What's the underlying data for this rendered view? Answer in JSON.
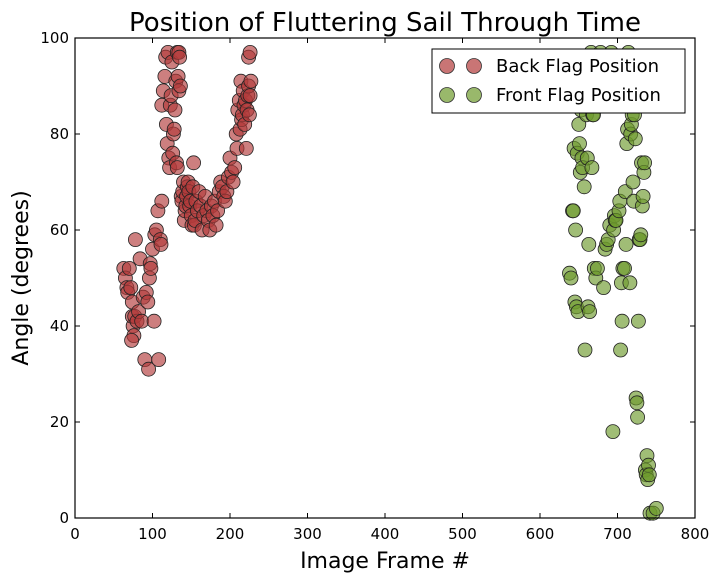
{
  "chart_data": {
    "type": "scatter",
    "title": "Position of Fluttering Sail Through Time",
    "xlabel": "Image Frame #",
    "ylabel": "Angle (degrees)",
    "xlim": [
      0,
      800
    ],
    "ylim": [
      0,
      100
    ],
    "xticks": [
      0,
      100,
      200,
      300,
      400,
      500,
      600,
      700,
      800
    ],
    "yticks": [
      0,
      20,
      40,
      60,
      80,
      100
    ],
    "grid": false,
    "legend_position": "top-right",
    "series": [
      {
        "name": "Back Flag Position",
        "color": "#b23a3a",
        "points": [
          [
            63,
            52
          ],
          [
            65,
            50
          ],
          [
            67,
            48
          ],
          [
            68,
            47
          ],
          [
            70,
            52
          ],
          [
            72,
            48
          ],
          [
            74,
            45
          ],
          [
            75,
            40
          ],
          [
            76,
            38
          ],
          [
            73,
            37
          ],
          [
            74,
            42
          ],
          [
            77,
            42
          ],
          [
            78,
            58
          ],
          [
            80,
            41
          ],
          [
            82,
            43
          ],
          [
            84,
            54
          ],
          [
            86,
            41
          ],
          [
            88,
            46
          ],
          [
            90,
            33
          ],
          [
            92,
            47
          ],
          [
            94,
            45
          ],
          [
            95,
            31
          ],
          [
            96,
            50
          ],
          [
            97,
            53
          ],
          [
            98,
            52
          ],
          [
            100,
            56
          ],
          [
            102,
            41
          ],
          [
            103,
            59
          ],
          [
            105,
            60
          ],
          [
            107,
            64
          ],
          [
            108,
            33
          ],
          [
            110,
            58
          ],
          [
            111,
            57
          ],
          [
            112,
            66
          ],
          [
            112,
            86
          ],
          [
            114,
            89
          ],
          [
            116,
            92
          ],
          [
            117,
            96
          ],
          [
            118,
            82
          ],
          [
            119,
            78
          ],
          [
            120,
            97
          ],
          [
            121,
            75
          ],
          [
            122,
            73
          ],
          [
            123,
            86
          ],
          [
            124,
            88
          ],
          [
            125,
            95
          ],
          [
            126,
            76
          ],
          [
            127,
            80
          ],
          [
            128,
            81
          ],
          [
            129,
            85
          ],
          [
            130,
            91
          ],
          [
            131,
            74
          ],
          [
            132,
            73
          ],
          [
            132,
            97
          ],
          [
            133,
            92
          ],
          [
            134,
            89
          ],
          [
            134,
            97
          ],
          [
            135,
            96
          ],
          [
            136,
            90
          ],
          [
            137,
            67
          ],
          [
            138,
            66
          ],
          [
            139,
            68
          ],
          [
            140,
            70
          ],
          [
            141,
            62
          ],
          [
            142,
            64
          ],
          [
            143,
            65
          ],
          [
            144,
            67
          ],
          [
            145,
            69
          ],
          [
            146,
            70
          ],
          [
            147,
            68
          ],
          [
            148,
            65
          ],
          [
            149,
            66
          ],
          [
            150,
            63
          ],
          [
            151,
            61
          ],
          [
            152,
            69
          ],
          [
            153,
            74
          ],
          [
            154,
            61
          ],
          [
            155,
            62
          ],
          [
            156,
            66
          ],
          [
            158,
            64
          ],
          [
            160,
            68
          ],
          [
            162,
            65
          ],
          [
            164,
            60
          ],
          [
            166,
            63
          ],
          [
            168,
            67
          ],
          [
            170,
            64
          ],
          [
            172,
            62
          ],
          [
            174,
            60
          ],
          [
            176,
            65
          ],
          [
            178,
            63
          ],
          [
            180,
            66
          ],
          [
            182,
            61
          ],
          [
            184,
            64
          ],
          [
            186,
            68
          ],
          [
            188,
            70
          ],
          [
            190,
            69
          ],
          [
            192,
            67
          ],
          [
            194,
            66
          ],
          [
            196,
            68
          ],
          [
            198,
            71
          ],
          [
            200,
            75
          ],
          [
            202,
            72
          ],
          [
            204,
            70
          ],
          [
            206,
            73
          ],
          [
            208,
            80
          ],
          [
            209,
            77
          ],
          [
            210,
            85
          ],
          [
            212,
            87
          ],
          [
            213,
            81
          ],
          [
            214,
            91
          ],
          [
            215,
            83
          ],
          [
            216,
            84
          ],
          [
            217,
            89
          ],
          [
            218,
            86
          ],
          [
            219,
            82
          ],
          [
            220,
            87
          ],
          [
            221,
            77
          ],
          [
            222,
            85
          ],
          [
            223,
            88
          ],
          [
            224,
            90
          ],
          [
            224,
            96
          ],
          [
            225,
            84
          ],
          [
            226,
            88
          ],
          [
            226,
            97
          ],
          [
            227,
            91
          ]
        ]
      },
      {
        "name": "Front Flag Position",
        "color": "#6d9a2c",
        "points": [
          [
            638,
            51
          ],
          [
            640,
            50
          ],
          [
            642,
            64
          ],
          [
            643,
            64
          ],
          [
            644,
            77
          ],
          [
            645,
            45
          ],
          [
            646,
            60
          ],
          [
            647,
            44
          ],
          [
            648,
            76
          ],
          [
            649,
            43
          ],
          [
            650,
            82
          ],
          [
            651,
            78
          ],
          [
            652,
            72
          ],
          [
            653,
            85
          ],
          [
            654,
            75
          ],
          [
            655,
            73
          ],
          [
            656,
            87
          ],
          [
            657,
            69
          ],
          [
            658,
            35
          ],
          [
            659,
            88
          ],
          [
            660,
            84
          ],
          [
            661,
            75
          ],
          [
            662,
            44
          ],
          [
            663,
            57
          ],
          [
            664,
            43
          ],
          [
            665,
            92
          ],
          [
            666,
            97
          ],
          [
            667,
            73
          ],
          [
            668,
            84
          ],
          [
            669,
            84
          ],
          [
            670,
            52
          ],
          [
            672,
            50
          ],
          [
            674,
            52
          ],
          [
            676,
            87
          ],
          [
            678,
            97
          ],
          [
            680,
            95
          ],
          [
            682,
            48
          ],
          [
            684,
            56
          ],
          [
            686,
            57
          ],
          [
            688,
            58
          ],
          [
            690,
            61
          ],
          [
            692,
            97
          ],
          [
            694,
            18
          ],
          [
            695,
            60
          ],
          [
            696,
            63
          ],
          [
            697,
            62
          ],
          [
            698,
            62
          ],
          [
            699,
            90
          ],
          [
            700,
            93
          ],
          [
            701,
            88
          ],
          [
            702,
            64
          ],
          [
            703,
            66
          ],
          [
            704,
            35
          ],
          [
            705,
            49
          ],
          [
            706,
            41
          ],
          [
            707,
            52
          ],
          [
            708,
            93
          ],
          [
            709,
            52
          ],
          [
            710,
            68
          ],
          [
            711,
            57
          ],
          [
            712,
            78
          ],
          [
            713,
            81
          ],
          [
            714,
            97
          ],
          [
            715,
            95
          ],
          [
            716,
            49
          ],
          [
            717,
            80
          ],
          [
            718,
            82
          ],
          [
            719,
            84
          ],
          [
            720,
            70
          ],
          [
            721,
            66
          ],
          [
            722,
            84
          ],
          [
            723,
            79
          ],
          [
            724,
            25
          ],
          [
            725,
            24
          ],
          [
            726,
            21
          ],
          [
            727,
            41
          ],
          [
            728,
            58
          ],
          [
            729,
            58
          ],
          [
            730,
            59
          ],
          [
            731,
            74
          ],
          [
            732,
            65
          ],
          [
            733,
            67
          ],
          [
            734,
            72
          ],
          [
            735,
            74
          ],
          [
            736,
            10
          ],
          [
            737,
            9
          ],
          [
            738,
            13
          ],
          [
            739,
            8
          ],
          [
            740,
            11
          ],
          [
            741,
            9
          ],
          [
            742,
            1
          ],
          [
            746,
            1
          ],
          [
            750,
            2
          ]
        ]
      }
    ]
  }
}
